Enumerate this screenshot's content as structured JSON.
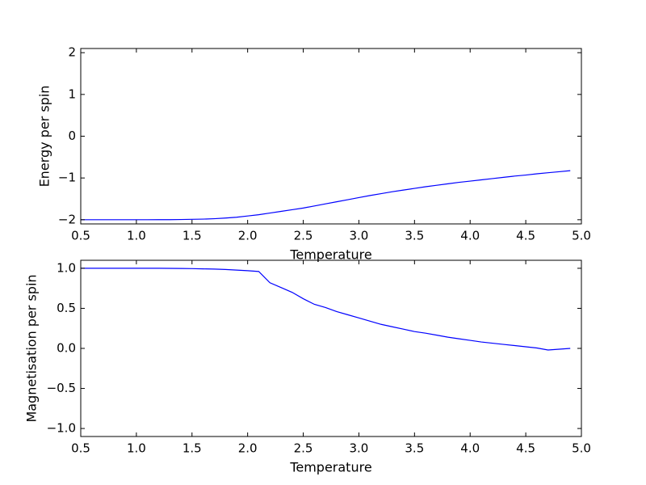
{
  "chart_data": [
    {
      "type": "line",
      "x_label": "Temperature",
      "y_label": "Energy per spin",
      "color": "#0000ff",
      "x": [
        0.5,
        0.6,
        0.7,
        0.8,
        0.9,
        1.0,
        1.1,
        1.2,
        1.3,
        1.4,
        1.5,
        1.6,
        1.7,
        1.8,
        1.9,
        2.0,
        2.1,
        2.2,
        2.3,
        2.4,
        2.5,
        2.6,
        2.7,
        2.8,
        2.9,
        3.0,
        3.1,
        3.2,
        3.3,
        3.4,
        3.5,
        3.6,
        3.7,
        3.8,
        3.9,
        4.0,
        4.1,
        4.2,
        4.3,
        4.4,
        4.5,
        4.6,
        4.7,
        4.8,
        4.9
      ],
      "values": [
        -2.0,
        -2.0,
        -2.0,
        -2.0,
        -2.0,
        -2.0,
        -2.0,
        -1.999,
        -1.998,
        -1.995,
        -1.99,
        -1.985,
        -1.975,
        -1.96,
        -1.94,
        -1.91,
        -1.88,
        -1.84,
        -1.8,
        -1.76,
        -1.72,
        -1.67,
        -1.62,
        -1.57,
        -1.52,
        -1.47,
        -1.42,
        -1.375,
        -1.33,
        -1.29,
        -1.25,
        -1.21,
        -1.175,
        -1.14,
        -1.105,
        -1.075,
        -1.045,
        -1.015,
        -0.985,
        -0.955,
        -0.93,
        -0.9,
        -0.875,
        -0.85,
        -0.825
      ],
      "xlim": [
        0.5,
        5.0
      ],
      "xticks": [
        0.5,
        {
          "value": 1.0,
          "label": "1.0"
        },
        1.5,
        {
          "value": 2.0,
          "label": "2.0"
        },
        2.5,
        {
          "value": 3.0,
          "label": "3.0"
        },
        3.5,
        {
          "value": 4.0,
          "label": "4.0"
        },
        4.5,
        {
          "value": 5.0,
          "label": "5.0"
        }
      ],
      "ylim": [
        -2.1,
        2.1
      ],
      "yticks": [
        {
          "value": -2,
          "label": "−2"
        },
        {
          "value": -1,
          "label": "−1"
        },
        0,
        1,
        2
      ]
    },
    {
      "type": "line",
      "x_label": "Temperature",
      "y_label": "Magnetisation per spin",
      "color": "#0000ff",
      "x": [
        0.5,
        0.6,
        0.7,
        0.8,
        0.9,
        1.0,
        1.1,
        1.2,
        1.3,
        1.4,
        1.5,
        1.6,
        1.7,
        1.8,
        1.9,
        2.0,
        2.1,
        2.2,
        2.3,
        2.4,
        2.5,
        2.6,
        2.7,
        2.8,
        2.9,
        3.0,
        3.1,
        3.2,
        3.3,
        3.4,
        3.5,
        3.6,
        3.7,
        3.8,
        3.9,
        4.0,
        4.1,
        4.2,
        4.3,
        4.4,
        4.5,
        4.6,
        4.7,
        4.8,
        4.9
      ],
      "values": [
        1.0,
        1.0,
        1.0,
        1.0,
        1.0,
        1.0,
        1.0,
        1.0,
        0.999,
        0.998,
        0.996,
        0.993,
        0.99,
        0.985,
        0.978,
        0.97,
        0.96,
        0.82,
        0.76,
        0.7,
        0.62,
        0.55,
        0.51,
        0.46,
        0.42,
        0.38,
        0.34,
        0.3,
        0.27,
        0.24,
        0.21,
        0.19,
        0.165,
        0.14,
        0.12,
        0.1,
        0.08,
        0.065,
        0.05,
        0.035,
        0.02,
        0.005,
        -0.02,
        -0.01,
        0.0
      ],
      "xlim": [
        0.5,
        5.0
      ],
      "xticks": [
        0.5,
        {
          "value": 1.0,
          "label": "1.0"
        },
        1.5,
        {
          "value": 2.0,
          "label": "2.0"
        },
        2.5,
        {
          "value": 3.0,
          "label": "3.0"
        },
        3.5,
        {
          "value": 4.0,
          "label": "4.0"
        },
        4.5,
        {
          "value": 5.0,
          "label": "5.0"
        }
      ],
      "ylim": [
        -1.1,
        1.1
      ],
      "yticks": [
        {
          "value": -1.0,
          "label": "−1.0"
        },
        {
          "value": -0.5,
          "label": "−0.5"
        },
        {
          "value": 0.0,
          "label": "0.0"
        },
        0.5,
        {
          "value": 1.0,
          "label": "1.0"
        }
      ]
    }
  ]
}
